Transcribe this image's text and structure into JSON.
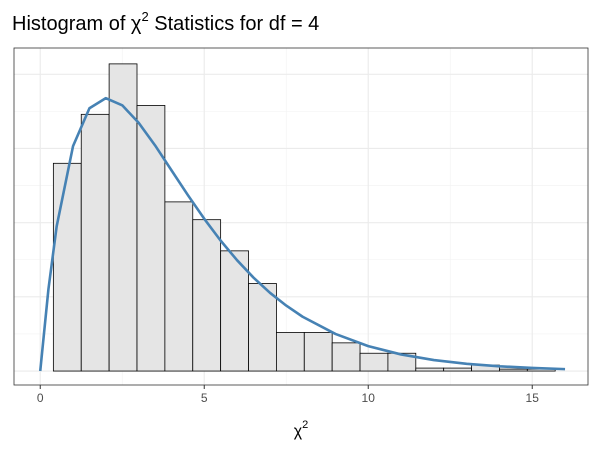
{
  "chart_data": {
    "type": "histogram",
    "title": {
      "text": "Histogram of  χ",
      "superscript": "2",
      "rest": "  Statistics for  df = 4"
    },
    "x_label": {
      "text": "χ",
      "superscript": "2"
    },
    "bins": [
      0.4,
      1.25,
      2.1,
      2.95,
      3.8,
      4.65,
      5.5,
      6.35,
      7.2,
      8.05,
      8.9,
      9.75,
      10.6,
      11.45,
      12.3,
      13.15,
      14.0,
      14.85,
      15.7
    ],
    "values": [
      0.14,
      0.173,
      0.207,
      0.179,
      0.114,
      0.102,
      0.081,
      0.059,
      0.026,
      0.026,
      0.019,
      0.012,
      0.012,
      0.002,
      0.002,
      0.004,
      0.0013,
      0.0013
    ],
    "color": "#e5e5e5",
    "edge_color": "#000000",
    "curve": {
      "color": "#4682b4",
      "x": [
        0,
        0.25,
        0.5,
        1,
        1.5,
        2,
        2.5,
        3,
        3.5,
        4,
        4.5,
        5,
        5.5,
        6,
        6.5,
        7,
        7.5,
        8,
        9,
        10,
        11,
        12,
        13,
        14,
        15,
        16
      ],
      "values": [
        0,
        0.0552,
        0.0974,
        0.1516,
        0.1771,
        0.1839,
        0.1791,
        0.1673,
        0.1521,
        0.1353,
        0.1186,
        0.1026,
        0.0879,
        0.0747,
        0.063,
        0.0528,
        0.0441,
        0.0366,
        0.025,
        0.0168,
        0.0112,
        0.0074,
        0.0049,
        0.0032,
        0.0021,
        0.0013
      ]
    },
    "xlim": [
      -0.8,
      16.7
    ],
    "ylim": [
      -0.0094,
      0.2177
    ],
    "xticks": [
      0,
      5,
      10,
      15
    ],
    "yticks": [
      0,
      0.05,
      0.1,
      0.15,
      0.2
    ],
    "grid": true
  }
}
